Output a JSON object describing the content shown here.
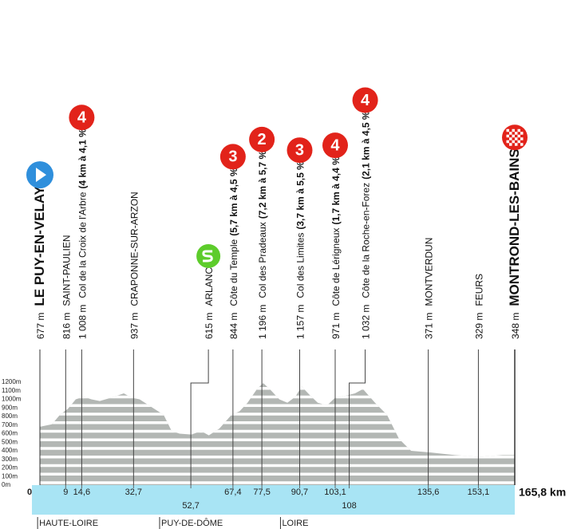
{
  "chart_data": {
    "type": "area",
    "x": [
      0,
      4.2,
      7,
      9.8,
      12.5,
      15.3,
      18,
      20.9,
      25,
      29.3,
      32,
      34.8,
      39,
      43.2,
      46,
      48.8,
      52.9,
      56.3,
      59,
      62.7,
      66.9,
      69.7,
      72.5,
      75.8,
      78,
      80.8,
      83.6,
      86.4,
      89.2,
      91.4,
      94.2,
      97,
      100.3,
      103.1,
      106.4,
      110,
      112.8,
      117,
      121.2,
      125.4,
      129.6,
      136.5,
      144.9,
      153.3,
      161.6,
      165.8
    ],
    "values": [
      680,
      710,
      820,
      890,
      1000,
      1030,
      1000,
      980,
      1020,
      1070,
      1020,
      1000,
      910,
      820,
      630,
      600,
      590,
      630,
      580,
      660,
      820,
      860,
      960,
      1120,
      1190,
      1100,
      1000,
      960,
      1030,
      1150,
      1050,
      960,
      930,
      1020,
      1040,
      1070,
      1120,
      960,
      820,
      540,
      400,
      380,
      350,
      330,
      350,
      350
    ],
    "color": "#b3b7b4",
    "grid": true,
    "xlim": [
      0,
      165.8
    ],
    "ylim": [
      0,
      1200
    ],
    "yticks": [
      {
        "value": 0,
        "label": "0m"
      },
      {
        "value": 100,
        "label": "100m"
      },
      {
        "value": 200,
        "label": "200m"
      },
      {
        "value": 300,
        "label": "300m"
      },
      {
        "value": 400,
        "label": "400m"
      },
      {
        "value": 500,
        "label": "500m"
      },
      {
        "value": 600,
        "label": "600m"
      },
      {
        "value": 700,
        "label": "700m"
      },
      {
        "value": 800,
        "label": "800m"
      },
      {
        "value": 900,
        "label": "900m"
      },
      {
        "value": 1000,
        "label": "1000m"
      },
      {
        "value": 1100,
        "label": "1100m"
      },
      {
        "value": 1200,
        "label": "1200m"
      }
    ],
    "waypoints": [
      {
        "km": 0,
        "altitude": "677 m",
        "name": "LE PUY-EN-VELAY"
      },
      {
        "km": 9,
        "altitude": "816 m",
        "name": "SAINT-PAULIEN"
      },
      {
        "km": {
          "value": 14.6,
          "label": "14,6"
        },
        "altitude": "1 008 m",
        "name": "Col de la Croix de l'Arbre",
        "climb": {
          "category": 4,
          "details": "(4 km à 4,1 %)"
        }
      },
      {
        "km": {
          "value": 32.7,
          "label": "32,7"
        },
        "altitude": "937 m",
        "name": "CRAPONNE-SUR-ARZON"
      },
      {
        "km": {
          "value": 52.7,
          "label": "52,7"
        },
        "altitude": "615 m",
        "name": "ARLANC"
      },
      {
        "km": {
          "value": 67.4,
          "label": "67,4"
        },
        "altitude": "844 m",
        "name": "Côte du Temple",
        "climb": {
          "category": 3,
          "details": "(5,7 km à 4,5 %)"
        }
      },
      {
        "km": {
          "value": 77.5,
          "label": "77,5"
        },
        "altitude": "1 196 m",
        "name": "Col des Pradeaux",
        "climb": {
          "category": 2,
          "details": "(7,2 km à 5,7 %)"
        }
      },
      {
        "km": {
          "value": 90.7,
          "label": "90,7"
        },
        "altitude": "1 157 m",
        "name": "Col des Limites",
        "climb": {
          "category": 3,
          "details": "(3,7 km à 5,5 %)"
        }
      },
      {
        "km": {
          "value": 103.1,
          "label": "103,1"
        },
        "altitude": "971 m",
        "name": "Côte de Lérigneux",
        "climb": {
          "category": 4,
          "details": "(1,7 km à 4,4 %)"
        }
      },
      {
        "km": 108,
        "altitude": "1 032 m",
        "name": "Côte de la Roche-en-Forez",
        "climb": {
          "category": 4,
          "details": "(2,1 km à 4,5 %)"
        }
      },
      {
        "km": {
          "value": 135.6,
          "label": "135,6"
        },
        "altitude": "371 m",
        "name": "MONTVERDUN"
      },
      {
        "km": {
          "value": 153.1,
          "label": "153,1"
        },
        "altitude": "329 m",
        "name": "FEURS"
      },
      {
        "altitude": "348 m",
        "name": "MONTROND-LES-BAINS"
      }
    ],
    "distance": {
      "value": 165.8,
      "label": "165,8 km"
    },
    "regions": [
      {
        "name": "HAUTE-LOIRE",
        "km": -0.8
      },
      {
        "name": "PUY-DE-DÔME",
        "km": 41.8
      },
      {
        "name": "LOIRE",
        "km": 84
      }
    ]
  }
}
